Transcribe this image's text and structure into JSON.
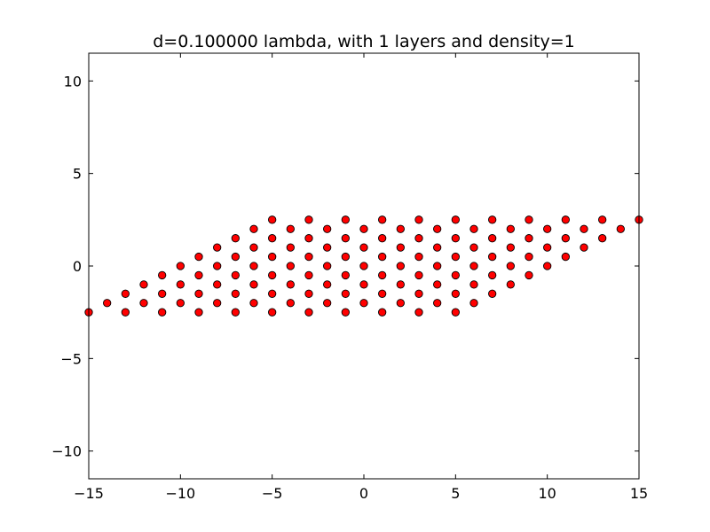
{
  "chart_data": {
    "type": "scatter",
    "title": "d=0.100000 lambda, with 1 layers and density=1",
    "xlabel": "",
    "ylabel": "",
    "xlim": [
      -15,
      15
    ],
    "ylim": [
      -11.5,
      11.5
    ],
    "xticks": [
      -15,
      -10,
      -5,
      0,
      5,
      10,
      15
    ],
    "yticks": [
      -10,
      -5,
      0,
      5,
      10
    ],
    "xtick_labels": [
      "−15",
      "−10",
      "−5",
      "0",
      "5",
      "10",
      "15"
    ],
    "ytick_labels": [
      "−10",
      "−5",
      "0",
      "5",
      "10"
    ],
    "grid": false,
    "legend": false,
    "marker_color": "#ff0000",
    "marker_edge_color": "#000000",
    "series": [
      {
        "points": [
          [
            -15,
            -2.5
          ],
          [
            -14,
            -2
          ],
          [
            -13,
            -2.5
          ],
          [
            -13,
            -1.5
          ],
          [
            -12,
            -2
          ],
          [
            -12,
            -1
          ],
          [
            -11,
            -2.5
          ],
          [
            -11,
            -1.5
          ],
          [
            -11,
            -0.5
          ],
          [
            -10,
            -2
          ],
          [
            -10,
            -1
          ],
          [
            -10,
            0
          ],
          [
            -9,
            -2.5
          ],
          [
            -9,
            -1.5
          ],
          [
            -9,
            -0.5
          ],
          [
            -9,
            0.5
          ],
          [
            -8,
            -2
          ],
          [
            -8,
            -1
          ],
          [
            -8,
            0
          ],
          [
            -8,
            1
          ],
          [
            -7,
            -2.5
          ],
          [
            -7,
            -1.5
          ],
          [
            -7,
            -0.5
          ],
          [
            -7,
            0.5
          ],
          [
            -7,
            1.5
          ],
          [
            -6,
            -2
          ],
          [
            -6,
            -1
          ],
          [
            -6,
            0
          ],
          [
            -6,
            1
          ],
          [
            -6,
            2
          ],
          [
            -5,
            -2.5
          ],
          [
            -5,
            -1.5
          ],
          [
            -5,
            -0.5
          ],
          [
            -5,
            0.5
          ],
          [
            -5,
            1.5
          ],
          [
            -5,
            2.5
          ],
          [
            -4,
            -2
          ],
          [
            -4,
            -1
          ],
          [
            -4,
            0
          ],
          [
            -4,
            1
          ],
          [
            -4,
            2
          ],
          [
            -3,
            -2.5
          ],
          [
            -3,
            -1.5
          ],
          [
            -3,
            -0.5
          ],
          [
            -3,
            0.5
          ],
          [
            -3,
            1.5
          ],
          [
            -3,
            2.5
          ],
          [
            -2,
            -2
          ],
          [
            -2,
            -1
          ],
          [
            -2,
            0
          ],
          [
            -2,
            1
          ],
          [
            -2,
            2
          ],
          [
            -1,
            -2.5
          ],
          [
            -1,
            -1.5
          ],
          [
            -1,
            -0.5
          ],
          [
            -1,
            0.5
          ],
          [
            -1,
            1.5
          ],
          [
            -1,
            2.5
          ],
          [
            0,
            -2
          ],
          [
            0,
            -1
          ],
          [
            0,
            0
          ],
          [
            0,
            1
          ],
          [
            0,
            2
          ],
          [
            1,
            -2.5
          ],
          [
            1,
            -1.5
          ],
          [
            1,
            -0.5
          ],
          [
            1,
            0.5
          ],
          [
            1,
            1.5
          ],
          [
            1,
            2.5
          ],
          [
            2,
            -2
          ],
          [
            2,
            -1
          ],
          [
            2,
            0
          ],
          [
            2,
            1
          ],
          [
            2,
            2
          ],
          [
            3,
            -2.5
          ],
          [
            3,
            -1.5
          ],
          [
            3,
            -0.5
          ],
          [
            3,
            0.5
          ],
          [
            3,
            1.5
          ],
          [
            3,
            2.5
          ],
          [
            4,
            -2
          ],
          [
            4,
            -1
          ],
          [
            4,
            0
          ],
          [
            4,
            1
          ],
          [
            4,
            2
          ],
          [
            5,
            -2.5
          ],
          [
            5,
            -1.5
          ],
          [
            5,
            -0.5
          ],
          [
            5,
            0.5
          ],
          [
            5,
            1.5
          ],
          [
            5,
            2.5
          ],
          [
            6,
            -2
          ],
          [
            6,
            -1
          ],
          [
            6,
            0
          ],
          [
            6,
            1
          ],
          [
            6,
            2
          ],
          [
            7,
            -1.5
          ],
          [
            7,
            -0.5
          ],
          [
            7,
            0.5
          ],
          [
            7,
            1.5
          ],
          [
            7,
            2.5
          ],
          [
            8,
            -1
          ],
          [
            8,
            0
          ],
          [
            8,
            1
          ],
          [
            8,
            2
          ],
          [
            9,
            -0.5
          ],
          [
            9,
            0.5
          ],
          [
            9,
            1.5
          ],
          [
            9,
            2.5
          ],
          [
            10,
            0
          ],
          [
            10,
            1
          ],
          [
            10,
            2
          ],
          [
            11,
            0.5
          ],
          [
            11,
            1.5
          ],
          [
            11,
            2.5
          ],
          [
            12,
            1
          ],
          [
            12,
            2
          ],
          [
            13,
            1.5
          ],
          [
            13,
            2.5
          ],
          [
            14,
            2
          ],
          [
            15,
            2.5
          ]
        ]
      }
    ]
  }
}
